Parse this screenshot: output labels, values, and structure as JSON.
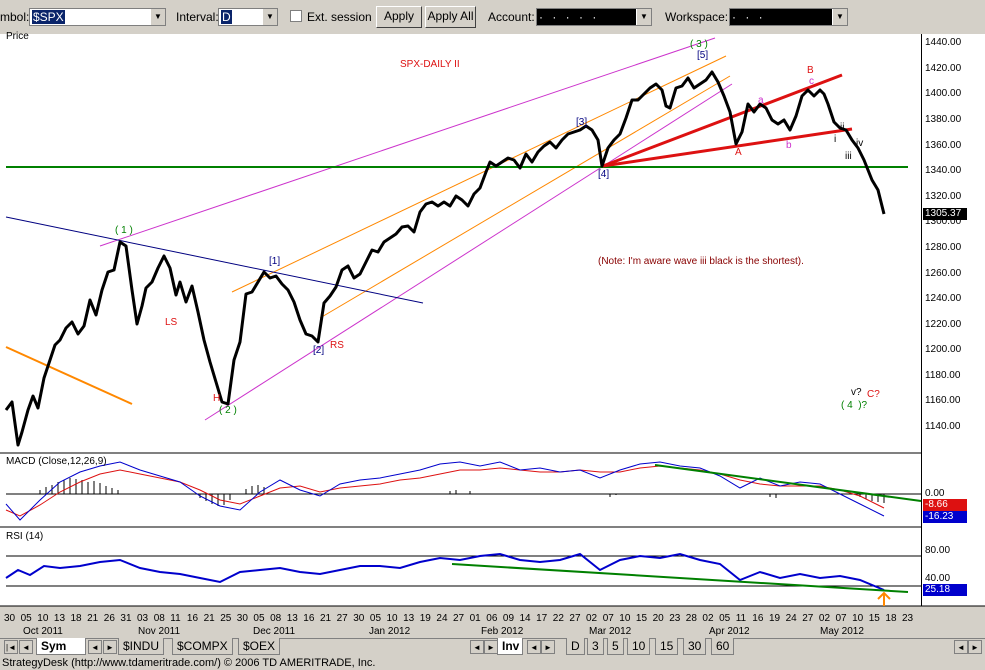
{
  "toolbar": {
    "symbol_label": "mbol:",
    "symbol_value": "$SPX",
    "interval_label": "Interval:",
    "interval_value": "D",
    "ext_session_label": "Ext. session",
    "apply_label": "Apply",
    "apply_all_label": "Apply All",
    "account_label": "Account:",
    "account_value": "· · · · ·",
    "workspace_label": "Workspace:",
    "workspace_value": "· · ·"
  },
  "chart": {
    "price_panel_title": "Price",
    "chart_title": "SPX-DAILY II",
    "note": "(Note: I'm aware wave iii black is the shortest).",
    "current_price": "1305.37",
    "wave_labels": {
      "w1": "( 1 )",
      "w2": "( 2 )",
      "w3": "( 3 )",
      "w5b": "[5]",
      "w3b": "[3]",
      "w4b": "[4]",
      "w1b": "[1]",
      "w2b": "[2]",
      "ls": "LS",
      "h": "H",
      "rs": "RS",
      "a_up": "A",
      "b_up": "B",
      "a_small": "a",
      "b_small": "b",
      "c_small": "c",
      "i": "i",
      "ii": "ii",
      "iii": "iii",
      "iv": "iv",
      "v": "v?",
      "c_q": "C?",
      "w4q": "( 4  )?"
    },
    "price_ticks": [
      "1440.00",
      "1420.00",
      "1400.00",
      "1380.00",
      "1360.00",
      "1340.00",
      "1320.00",
      "1300.00",
      "1280.00",
      "1260.00",
      "1240.00",
      "1220.00",
      "1200.00",
      "1180.00",
      "1160.00",
      "1140.00"
    ],
    "macd_title": "MACD (Close,12,26,9)",
    "macd_zero": "0.00",
    "macd_val1": "-8.66",
    "macd_val2": "-16.23",
    "rsi_title": "RSI (14)",
    "rsi_80": "80.00",
    "rsi_40": "40.00",
    "rsi_val": "25.18",
    "dates": [
      "30",
      "05",
      "10",
      "13",
      "18",
      "21",
      "26",
      "31",
      "03",
      "08",
      "11",
      "16",
      "21",
      "25",
      "30",
      "05",
      "08",
      "13",
      "16",
      "21",
      "27",
      "30",
      "05",
      "10",
      "13",
      "19",
      "24",
      "27",
      "01",
      "06",
      "09",
      "14",
      "17",
      "22",
      "27",
      "02",
      "07",
      "10",
      "15",
      "20",
      "23",
      "28",
      "02",
      "05",
      "11",
      "16",
      "19",
      "24",
      "27",
      "02",
      "07",
      "10",
      "15",
      "18",
      "23"
    ],
    "months": [
      "Oct 2011",
      "Nov 2011",
      "Dec 2011",
      "Jan 2012",
      "Feb 2012",
      "Mar 2012",
      "Apr 2012",
      "May 2012"
    ],
    "colors": {
      "price": "#000000",
      "green": "#008000",
      "magenta": "#cc33cc",
      "orange": "#ff8800",
      "red": "#dd1111",
      "blue": "#0000cc",
      "navy": "#000080"
    }
  },
  "tabs": {
    "sym": "Sym",
    "t1": "$INDU",
    "t2": "$COMPX",
    "t3": "$OEX",
    "inv": "Inv",
    "intervals": [
      "D",
      "3",
      "5",
      "10",
      "15",
      "30",
      "60"
    ]
  },
  "status": "StrategyDesk (http://www.tdameritrade.com/) © 2006 TD AMERITRADE, Inc."
}
